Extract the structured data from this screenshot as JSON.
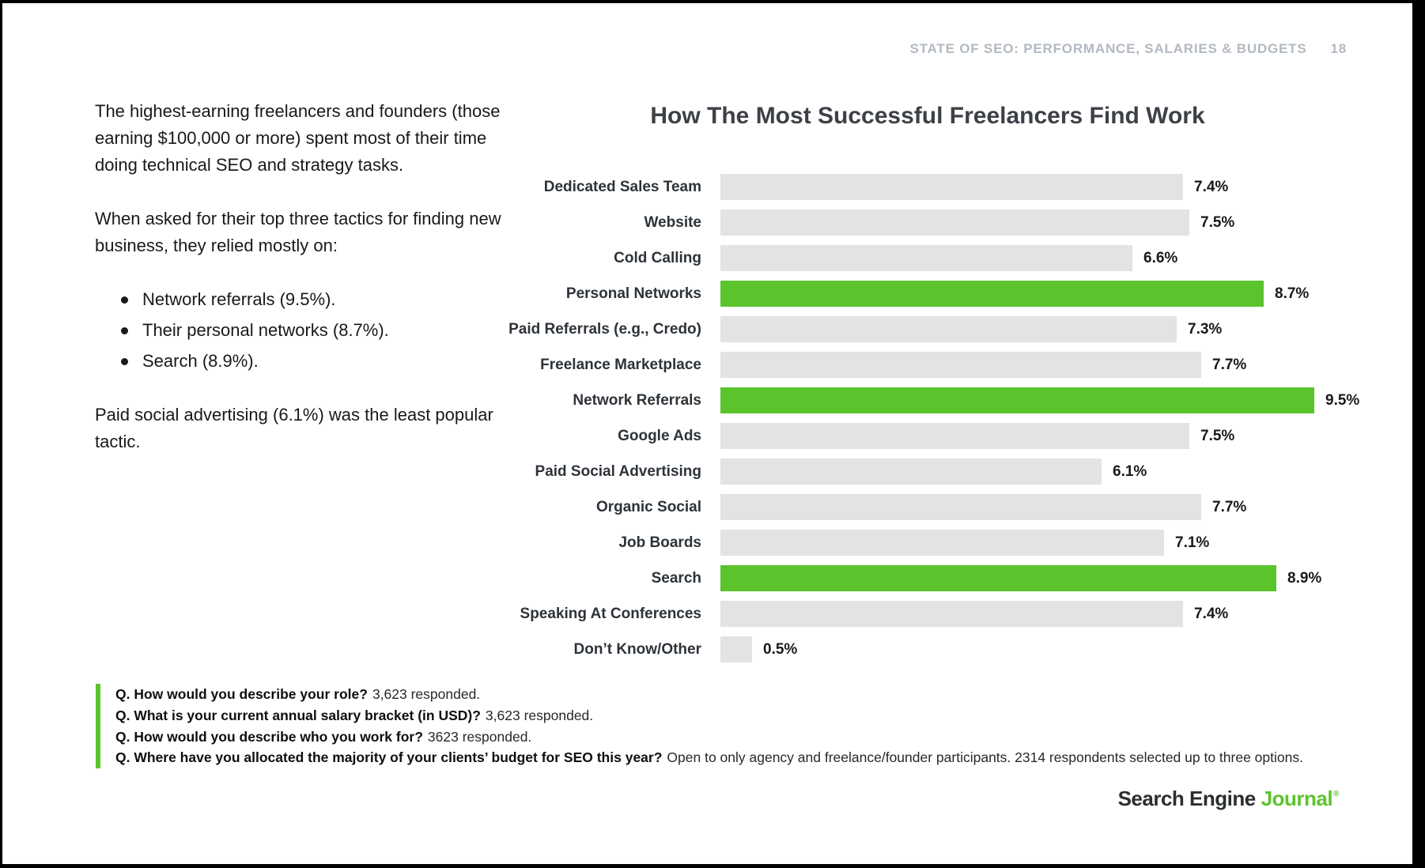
{
  "header": {
    "title": "STATE OF SEO: PERFORMANCE, SALARIES & BUDGETS",
    "page_number": "18"
  },
  "narrative": {
    "para1": "The highest-earning freelancers and founders (those earning $100,000 or more) spent most of their time doing technical SEO and strategy tasks.",
    "para2": "When asked for their top three tactics for finding new business, they relied mostly on:",
    "bullets": [
      "Network referrals (9.5%).",
      "Their personal networks (8.7%).",
      "Search (8.9%)."
    ],
    "para3": "Paid social advertising (6.1%) was the least popular tactic."
  },
  "chart_data": {
    "type": "bar",
    "orientation": "horizontal",
    "title": "How The Most Successful Freelancers Find Work",
    "categories": [
      "Dedicated Sales Team",
      "Website",
      "Cold Calling",
      "Personal Networks",
      "Paid Referrals (e.g., Credo)",
      "Freelance Marketplace",
      "Network Referrals",
      "Google Ads",
      "Paid Social Advertising",
      "Organic Social",
      "Job Boards",
      "Search",
      "Speaking At Conferences",
      "Don’t Know/Other"
    ],
    "values": [
      7.4,
      7.5,
      6.6,
      8.7,
      7.3,
      7.7,
      9.5,
      7.5,
      6.1,
      7.7,
      7.1,
      8.9,
      7.4,
      0.5
    ],
    "value_suffix": "%",
    "highlight_indexes": [
      3,
      6,
      11
    ],
    "xlim": [
      0,
      10
    ],
    "grid": false,
    "legend": false,
    "colors": {
      "bar_default": "#e3e3e3",
      "bar_highlight": "#5bc42d"
    }
  },
  "footnotes": [
    {
      "q": "Q. How would you describe your role?",
      "a": "3,623 responded."
    },
    {
      "q": "Q. What is your current annual salary bracket (in USD)?",
      "a": "3,623 responded."
    },
    {
      "q": "Q. How would you describe who you work for?",
      "a": "3623 responded."
    },
    {
      "q": "Q. Where have you allocated the majority of your clients’ budget for SEO this year?",
      "a": "Open to only agency and freelance/founder participants. 2314 respondents selected up to three options."
    }
  ],
  "logo": {
    "part1": "Search Engine",
    "part2": "Journal",
    "registered": "®"
  }
}
